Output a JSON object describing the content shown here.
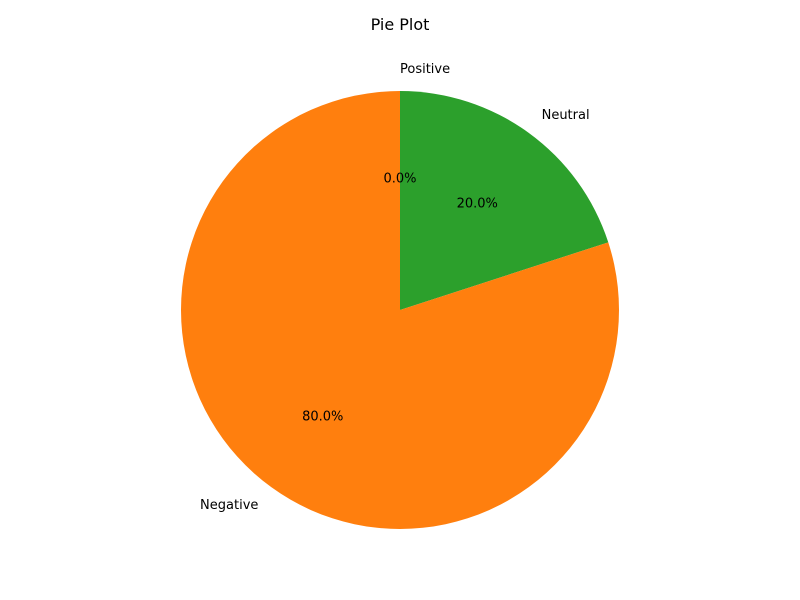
{
  "chart_data": {
    "type": "pie",
    "title": "Pie Plot",
    "slices": [
      {
        "label": "Positive",
        "value": 0.0,
        "pct_label": "0.0%",
        "color": "#1f77b4"
      },
      {
        "label": "Neutral",
        "value": 20.0,
        "pct_label": "20.0%",
        "color": "#2ca02c"
      },
      {
        "label": "Negative",
        "value": 80.0,
        "pct_label": "80.0%",
        "color": "#ff7f0e"
      }
    ],
    "start_angle_deg": 90,
    "direction": "clockwise"
  }
}
